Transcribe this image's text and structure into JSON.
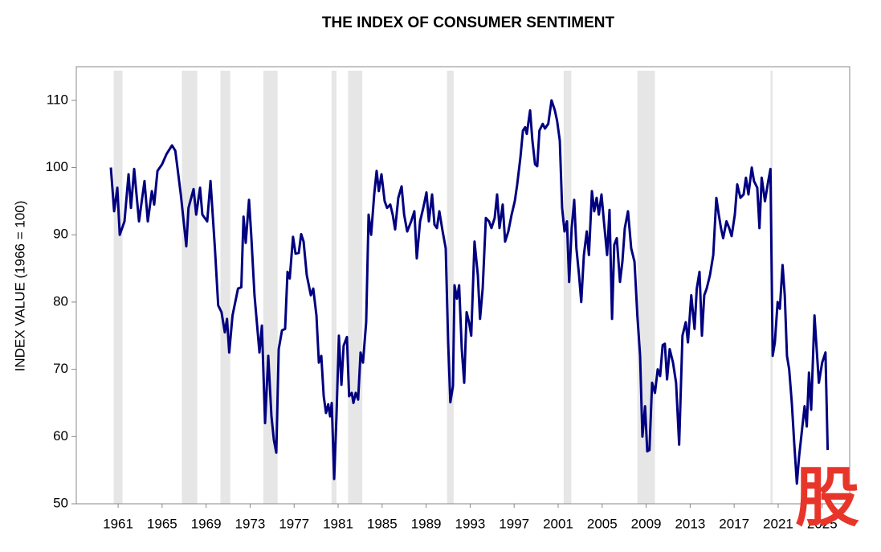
{
  "chart_data": {
    "type": "line",
    "title": "THE INDEX OF CONSUMER SENTIMENT",
    "ylabel": "INDEX VALUE (1966 = 100)",
    "x": [
      1960.34,
      1960.64,
      1960.93,
      1961.15,
      1961.58,
      1961.95,
      1962.17,
      1962.46,
      1962.9,
      1963.4,
      1963.7,
      1964.07,
      1964.28,
      1964.58,
      1965.0,
      1965.4,
      1965.9,
      1966.2,
      1966.7,
      1967.2,
      1967.4,
      1967.86,
      1968.1,
      1968.45,
      1968.66,
      1969.1,
      1969.4,
      1969.8,
      1970.1,
      1970.4,
      1970.7,
      1970.9,
      1971.1,
      1971.4,
      1971.9,
      1972.2,
      1972.4,
      1972.6,
      1972.9,
      1973.1,
      1973.4,
      1973.85,
      1974.07,
      1974.36,
      1974.65,
      1974.94,
      1975.16,
      1975.38,
      1975.6,
      1975.9,
      1976.18,
      1976.4,
      1976.6,
      1976.9,
      1977.13,
      1977.42,
      1977.64,
      1977.86,
      1978.15,
      1978.52,
      1978.74,
      1979.03,
      1979.25,
      1979.47,
      1979.69,
      1979.9,
      1980.1,
      1980.27,
      1980.42,
      1980.64,
      1980.85,
      1981.07,
      1981.3,
      1981.5,
      1981.8,
      1982.0,
      1982.24,
      1982.39,
      1982.6,
      1982.82,
      1983.04,
      1983.26,
      1983.55,
      1983.77,
      1984.0,
      1984.28,
      1984.5,
      1984.7,
      1984.94,
      1985.23,
      1985.45,
      1985.74,
      1985.96,
      1986.18,
      1986.47,
      1986.77,
      1987.0,
      1987.28,
      1987.64,
      1987.93,
      1988.15,
      1988.45,
      1988.74,
      1989.03,
      1989.25,
      1989.54,
      1989.76,
      1989.98,
      1990.2,
      1990.5,
      1990.78,
      1991.0,
      1991.2,
      1991.44,
      1991.58,
      1991.8,
      1992.0,
      1992.24,
      1992.46,
      1992.68,
      1992.9,
      1993.1,
      1993.4,
      1993.7,
      1993.9,
      1994.14,
      1994.43,
      1994.72,
      1994.94,
      1995.23,
      1995.45,
      1995.67,
      1995.96,
      1996.18,
      1996.47,
      1996.77,
      1997.06,
      1997.28,
      1997.57,
      1997.8,
      1998.0,
      1998.15,
      1998.45,
      1998.66,
      1998.9,
      1999.1,
      1999.3,
      1999.6,
      1999.8,
      2000.1,
      2000.4,
      2000.7,
      2000.9,
      2001.15,
      2001.36,
      2001.58,
      2001.8,
      2002.0,
      2002.23,
      2002.46,
      2002.66,
      2002.9,
      2003.1,
      2003.34,
      2003.6,
      2003.8,
      2004.07,
      2004.28,
      2004.5,
      2004.7,
      2004.94,
      2005.16,
      2005.45,
      2005.67,
      2005.9,
      2006.1,
      2006.33,
      2006.62,
      2006.84,
      2007.06,
      2007.35,
      2007.64,
      2007.94,
      2008.2,
      2008.45,
      2008.66,
      2008.9,
      2009.1,
      2009.3,
      2009.54,
      2009.8,
      2010.05,
      2010.27,
      2010.5,
      2010.7,
      2010.9,
      2011.14,
      2011.44,
      2011.72,
      2012.0,
      2012.3,
      2012.6,
      2012.8,
      2013.1,
      2013.4,
      2013.6,
      2013.85,
      2014.07,
      2014.28,
      2014.5,
      2014.8,
      2015.1,
      2015.38,
      2015.6,
      2015.8,
      2016.0,
      2016.3,
      2016.55,
      2016.77,
      2017.06,
      2017.28,
      2017.57,
      2017.86,
      2018.07,
      2018.3,
      2018.6,
      2018.8,
      2019.1,
      2019.3,
      2019.5,
      2019.8,
      2020.1,
      2020.3,
      2020.5,
      2020.7,
      2020.95,
      2021.15,
      2021.4,
      2021.6,
      2021.8,
      2022.0,
      2022.24,
      2022.46,
      2022.7,
      2022.9,
      2023.1,
      2023.4,
      2023.6,
      2023.8,
      2024.0,
      2024.3,
      2024.5,
      2024.7,
      2025.0,
      2025.3,
      2025.5
    ],
    "series": [
      {
        "name": "Index of Consumer Sentiment",
        "color": "#000080",
        "values": [
          100,
          93.5,
          97,
          90,
          92,
          99,
          94,
          99.8,
          92,
          98,
          92,
          96.5,
          94.5,
          99.5,
          100.5,
          102,
          103.3,
          102.5,
          96,
          88.3,
          94,
          96.8,
          93,
          97,
          93,
          92,
          98,
          88,
          79.5,
          78.5,
          75.5,
          77.5,
          72.5,
          78,
          82,
          82.2,
          92.7,
          88.8,
          95.2,
          90,
          81,
          72.5,
          76.5,
          62,
          72,
          63,
          59.5,
          57.6,
          73,
          75.8,
          76,
          84.5,
          83.5,
          89.7,
          87.2,
          87.3,
          90.1,
          89,
          84,
          81,
          82,
          78,
          71,
          72,
          66,
          63.5,
          64.8,
          63,
          65,
          53.7,
          63,
          75,
          67.7,
          73.5,
          74.8,
          66,
          66.5,
          65,
          66.5,
          65.5,
          72.5,
          71,
          77,
          93,
          90,
          96,
          99.5,
          96.5,
          99,
          95,
          94,
          94.5,
          93,
          90.8,
          95.5,
          97.2,
          93,
          90.5,
          92,
          93.5,
          86.5,
          92,
          94,
          96.3,
          92,
          96,
          91.5,
          91,
          93.5,
          90.5,
          88,
          74,
          65.1,
          67.5,
          82.5,
          80.5,
          82.5,
          73,
          68,
          78.5,
          77,
          75,
          89,
          84,
          77.5,
          82,
          92.5,
          92,
          91,
          92.5,
          96,
          91,
          94.5,
          89,
          90.5,
          93,
          95,
          97.5,
          101.5,
          105.5,
          106,
          105,
          108.5,
          104,
          100.5,
          100.2,
          105.5,
          106.5,
          105.8,
          106.5,
          110,
          108.5,
          107,
          104,
          94,
          90.5,
          92,
          83,
          91,
          95.2,
          88,
          84,
          80,
          87,
          90.5,
          87,
          96.5,
          93.5,
          95.5,
          93,
          96,
          92,
          87,
          93.7,
          77.5,
          88.5,
          89.5,
          83,
          86,
          91,
          93.5,
          88,
          86,
          78,
          72,
          60,
          64.5,
          57.8,
          58,
          68,
          66.5,
          70,
          69,
          73.6,
          73.8,
          68.5,
          73,
          71,
          68,
          58.8,
          75,
          77,
          74,
          81,
          76,
          82,
          84.5,
          75,
          81,
          82,
          84,
          87,
          95.5,
          93,
          91,
          89.5,
          92,
          91,
          89.8,
          93,
          97.5,
          95.5,
          96,
          98.5,
          96,
          100,
          98,
          97,
          91,
          98.5,
          95,
          98,
          99.8,
          72,
          74,
          80,
          79,
          85.5,
          81,
          72,
          70,
          65,
          59,
          53,
          57,
          60,
          64.5,
          61.5,
          69.5,
          64,
          78,
          73,
          68,
          71,
          72.5,
          58
        ]
      }
    ],
    "shaded_periods": [
      [
        1960.6,
        1961.4
      ],
      [
        1966.8,
        1968.2
      ],
      [
        1970.3,
        1971.2
      ],
      [
        1974.2,
        1975.5
      ],
      [
        1980.4,
        1980.85
      ],
      [
        1981.9,
        1983.2
      ],
      [
        1990.9,
        1991.5
      ],
      [
        2001.5,
        2002.2
      ],
      [
        2008.2,
        2009.8
      ],
      [
        2020.3,
        2020.5
      ]
    ],
    "shade_color": "#e6e6e6",
    "xlim": [
      1957.2,
      2027.5
    ],
    "xticks": [
      1961,
      1965,
      1969,
      1973,
      1977,
      1981,
      1985,
      1989,
      1993,
      1997,
      2001,
      2005,
      2009,
      2013,
      2017,
      2021,
      2025
    ],
    "ylim": [
      50,
      115
    ],
    "yticks": [
      50,
      60,
      70,
      80,
      90,
      100,
      110
    ],
    "watermark": "股"
  }
}
